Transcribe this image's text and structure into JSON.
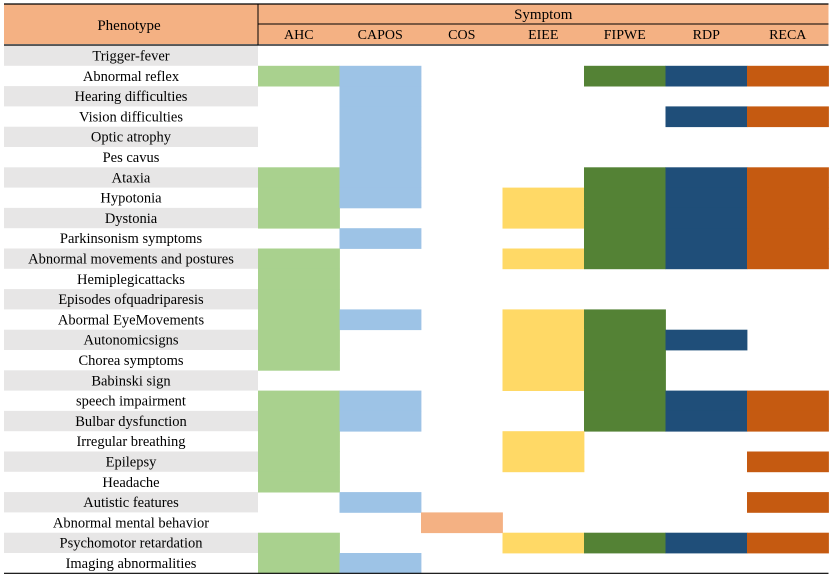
{
  "chart_data": {
    "type": "table",
    "row_header": "Phenotype",
    "column_group_header": "Symptom",
    "columns": [
      "AHC",
      "CAPOS",
      "COS",
      "EIEE",
      "FIPWE",
      "RDP",
      "RECA"
    ],
    "rows": [
      "Trigger-fever",
      "Abnormal reflex",
      "Hearing difficulties",
      "Vision difficulties",
      "Optic atrophy",
      "Pes cavus",
      "Ataxia",
      "Hypotonia",
      "Dystonia",
      "Parkinsonism  symptoms",
      "Abnormal movements and postures",
      "Hemiplegicattacks",
      "Episodes ofquadriparesis",
      "Abormal EyeMovements",
      "Autonomicsigns",
      "Chorea symptoms",
      "Babinski sign",
      "speech impairment",
      "Bulbar dysfunction",
      "Irregular breathing",
      "Epilepsy",
      "Headache",
      "Autistic features",
      "Abnormal mental behavior",
      "Psychomotor retardation",
      "Imaging abnormalities"
    ],
    "matrix": [
      [
        0,
        0,
        0,
        0,
        0,
        0,
        0
      ],
      [
        1,
        1,
        0,
        0,
        1,
        1,
        1
      ],
      [
        0,
        1,
        0,
        0,
        0,
        0,
        0
      ],
      [
        0,
        1,
        0,
        0,
        0,
        1,
        1
      ],
      [
        0,
        1,
        0,
        0,
        0,
        0,
        0
      ],
      [
        0,
        1,
        0,
        0,
        0,
        0,
        0
      ],
      [
        1,
        1,
        0,
        0,
        1,
        1,
        1
      ],
      [
        1,
        1,
        0,
        1,
        1,
        1,
        1
      ],
      [
        1,
        0,
        0,
        1,
        1,
        1,
        1
      ],
      [
        0,
        1,
        0,
        0,
        1,
        1,
        1
      ],
      [
        1,
        0,
        0,
        1,
        1,
        1,
        1
      ],
      [
        1,
        0,
        0,
        0,
        0,
        0,
        0
      ],
      [
        1,
        0,
        0,
        0,
        0,
        0,
        0
      ],
      [
        1,
        1,
        0,
        1,
        1,
        0,
        0
      ],
      [
        1,
        0,
        0,
        1,
        1,
        1,
        0
      ],
      [
        1,
        0,
        0,
        1,
        1,
        0,
        0
      ],
      [
        0,
        0,
        0,
        1,
        1,
        0,
        0
      ],
      [
        1,
        1,
        0,
        0,
        1,
        1,
        1
      ],
      [
        1,
        1,
        0,
        0,
        1,
        1,
        1
      ],
      [
        1,
        0,
        0,
        1,
        0,
        0,
        0
      ],
      [
        1,
        0,
        0,
        1,
        0,
        0,
        1
      ],
      [
        1,
        0,
        0,
        0,
        0,
        0,
        0
      ],
      [
        0,
        1,
        0,
        0,
        0,
        0,
        1
      ],
      [
        0,
        0,
        1,
        0,
        0,
        0,
        0
      ],
      [
        1,
        0,
        0,
        1,
        1,
        1,
        1
      ],
      [
        1,
        1,
        0,
        0,
        0,
        0,
        0
      ]
    ],
    "column_colors": [
      "#a9d18e",
      "#9dc3e6",
      "#f4b183",
      "#ffd966",
      "#548235",
      "#1f4e79",
      "#c55a11"
    ],
    "header_color": "#f4b183",
    "row_stripe_color": "#e7e6e6"
  }
}
